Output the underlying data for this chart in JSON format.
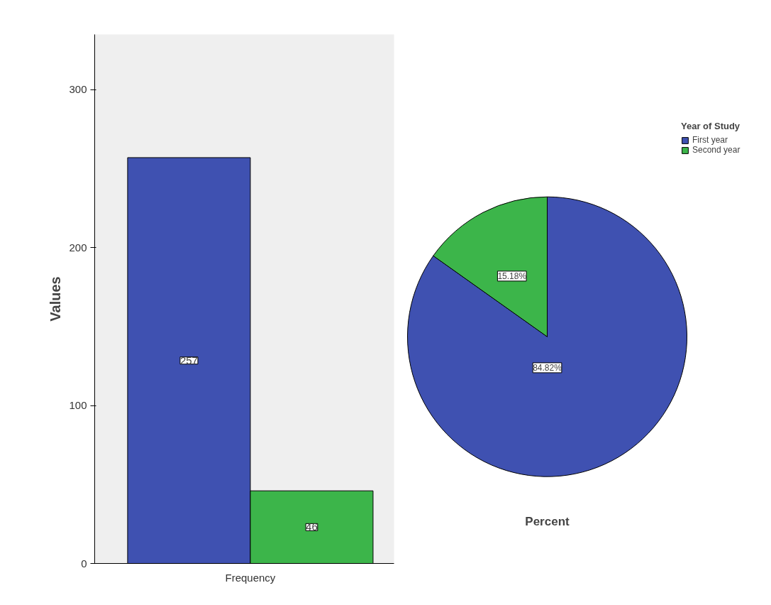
{
  "chart_data": [
    {
      "type": "bar",
      "ylabel": "Values",
      "categories": [
        "Frequency"
      ],
      "series": [
        {
          "color": "#3f51b1",
          "values": [
            257
          ]
        },
        {
          "color": "#3cb54a",
          "values": [
            46
          ]
        }
      ],
      "ylim": [
        0,
        335
      ],
      "yticks": [
        0,
        100,
        200,
        300
      ],
      "grid": false,
      "data_labels": true
    },
    {
      "type": "pie",
      "xlabel": "Percent",
      "legend_title": "Year of Study",
      "legend": "right",
      "categories": [
        "First year",
        "Second year"
      ],
      "values": [
        84.82,
        15.18
      ],
      "colors": [
        "#3f51b1",
        "#3cb54a"
      ],
      "value_labels": [
        "84.82%",
        "15.18%"
      ]
    }
  ]
}
